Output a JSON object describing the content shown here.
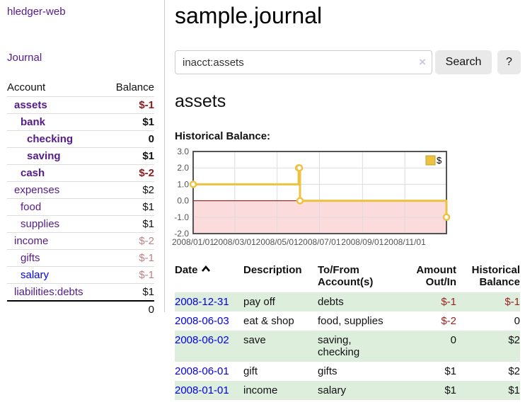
{
  "sidebar": {
    "app_title": "hledger-web",
    "nav": {
      "journal": "Journal"
    },
    "accounts": {
      "headers": {
        "account": "Account",
        "balance": "Balance"
      },
      "rows": [
        {
          "name": "assets",
          "indent": 0,
          "balance": "$-1",
          "bold": true
        },
        {
          "name": "bank",
          "indent": 1,
          "balance": "$1",
          "bold": true
        },
        {
          "name": "checking",
          "indent": 2,
          "balance": "0",
          "bold": true
        },
        {
          "name": "saving",
          "indent": 2,
          "balance": "$1",
          "bold": true
        },
        {
          "name": "cash",
          "indent": 1,
          "balance": "$-2",
          "bold": true
        },
        {
          "name": "expenses",
          "indent": 0,
          "balance": "$2",
          "bold": false
        },
        {
          "name": "food",
          "indent": 1,
          "balance": "$1",
          "bold": false
        },
        {
          "name": "supplies",
          "indent": 1,
          "balance": "$1",
          "bold": false
        },
        {
          "name": "income",
          "indent": 0,
          "balance": "$-2",
          "bold": false
        },
        {
          "name": "gifts",
          "indent": 1,
          "balance": "$-1",
          "bold": false
        },
        {
          "name": "salary",
          "indent": 1,
          "balance": "$-1",
          "bold": false,
          "link": "blue"
        },
        {
          "name": "liabilities:debts",
          "indent": 0,
          "balance": "$1",
          "bold": false
        }
      ],
      "total": "0"
    }
  },
  "header": {
    "title": "sample.journal"
  },
  "search": {
    "value": "inacct:assets",
    "clear_icon": "×",
    "search_button": "Search",
    "help_button": "?"
  },
  "account_view": {
    "heading": "assets",
    "chart_title": "Historical Balance:"
  },
  "chart_data": {
    "type": "line",
    "title": "Historical Balance:",
    "series": [
      {
        "name": "$",
        "step": true,
        "points": [
          [
            "2008/01/01",
            1
          ],
          [
            "2008/06/01",
            2
          ],
          [
            "2008/06/02",
            2
          ],
          [
            "2008/06/03",
            0
          ],
          [
            "2008/12/31",
            -1
          ]
        ]
      }
    ],
    "x_range": [
      "2008/01/01",
      "2008/12/31"
    ],
    "y_range": [
      -2,
      3
    ],
    "x_ticks": [
      "2008/01/01",
      "2008/03/01",
      "2008/05/01",
      "2008/07/01",
      "2008/09/01",
      "2008/11/01"
    ],
    "y_ticks": [
      3,
      2,
      1,
      0,
      -1,
      -2
    ],
    "legend": {
      "label": "$",
      "position": "top-right"
    },
    "negative_region_shaded": true,
    "colors": {
      "line": "#edc240",
      "negative_fill": "#fbdbdb",
      "zero_line": "#990000",
      "grid": "#dcdcdc",
      "border": "#545454",
      "axis_text": "#545454",
      "legend_border": "#bfa139"
    }
  },
  "register": {
    "headers": {
      "date": "Date",
      "description": "Description",
      "accounts": "To/From\nAccount(s)",
      "amount": "Amount\nOut/In",
      "balance": "Historical\nBalance"
    },
    "icons": {
      "sort": "chevron-up",
      "clear_search": "×"
    },
    "rows": [
      {
        "date": "2008-12-31",
        "description": "pay off",
        "accounts": "debts",
        "amount": "$-1",
        "balance": "$-1"
      },
      {
        "date": "2008-06-03",
        "description": "eat & shop",
        "accounts": "food, supplies",
        "amount": "$-2",
        "balance": "0"
      },
      {
        "date": "2008-06-02",
        "description": "save",
        "accounts": "saving,\nchecking",
        "amount": "0",
        "balance": "$2"
      },
      {
        "date": "2008-06-01",
        "description": "gift",
        "accounts": "gifts",
        "amount": "$1",
        "balance": "$2"
      },
      {
        "date": "2008-01-01",
        "description": "income",
        "accounts": "salary",
        "amount": "$1",
        "balance": "$1"
      }
    ]
  },
  "colors": {
    "link_purple": "#551a8b",
    "link_blue": "#0000ee",
    "negative_strong": "#8b1a1b",
    "negative_muted": "#c08080",
    "negative_table": "#9d2020",
    "row_stripe_green": "#ddeedd"
  }
}
